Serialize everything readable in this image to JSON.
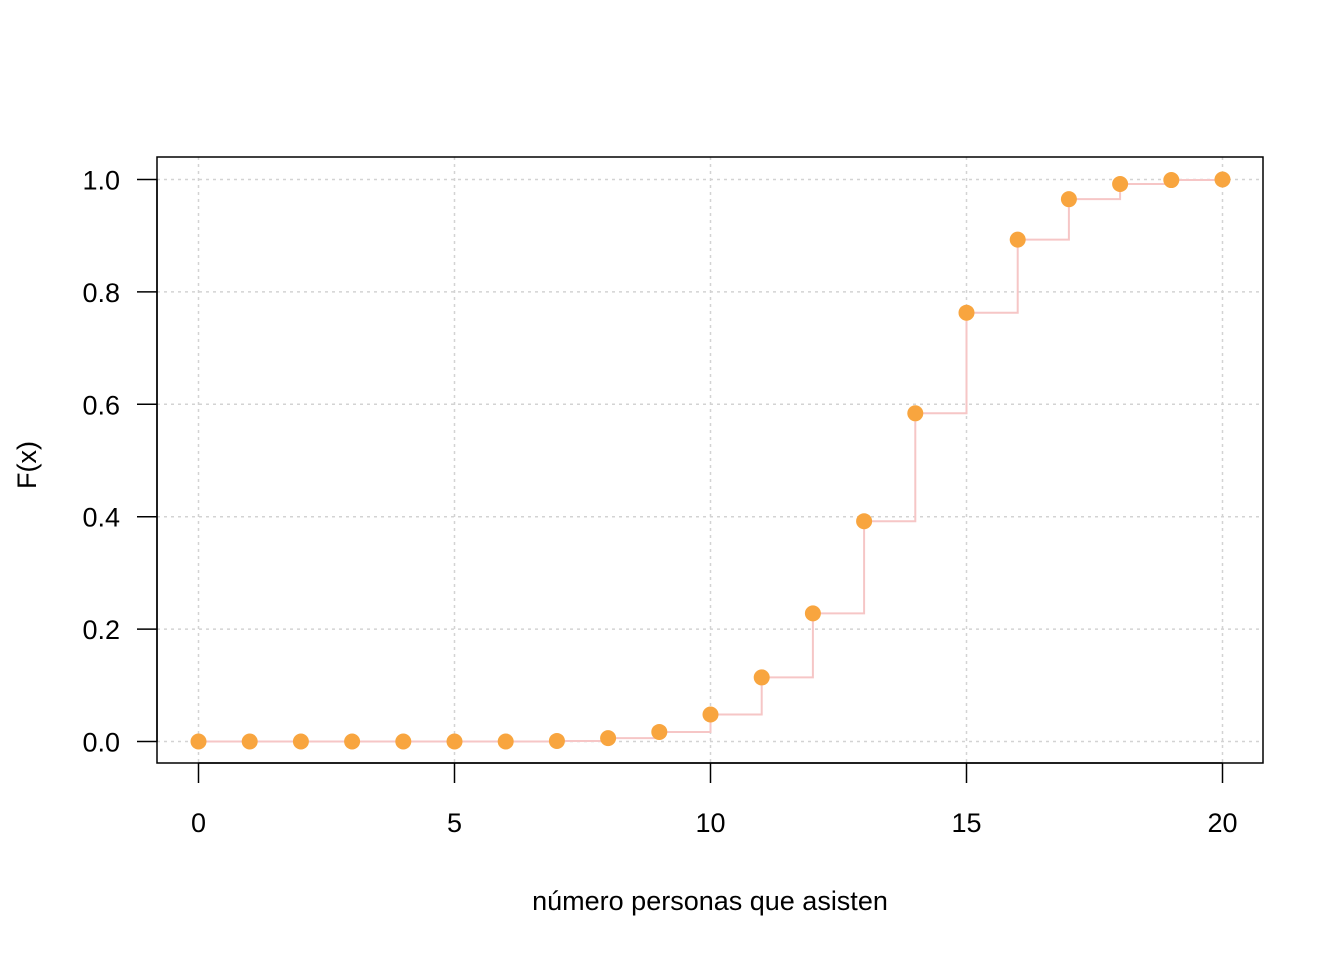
{
  "chart_data": {
    "type": "scatter",
    "title": "",
    "xlabel": "número personas que asisten",
    "ylabel": "F(x)",
    "xlim": [
      0,
      20
    ],
    "ylim": [
      0,
      1
    ],
    "x_ticks": [
      0,
      5,
      10,
      15,
      20
    ],
    "x_tick_labels": [
      "0",
      "5",
      "10",
      "15",
      "20"
    ],
    "y_ticks": [
      0,
      0.2,
      0.4,
      0.6,
      0.8,
      1.0
    ],
    "y_tick_labels": [
      "0.0",
      "0.2",
      "0.4",
      "0.6",
      "0.8",
      "1.0"
    ],
    "grid": true,
    "grid_style": "dotted",
    "step_line": true,
    "series": [
      {
        "x": [
          0,
          1,
          2,
          3,
          4,
          5,
          6,
          7,
          8,
          9,
          10,
          11,
          12,
          13,
          14,
          15,
          16,
          17,
          18,
          19,
          20
        ],
        "y": [
          0.0,
          0.0,
          0.0,
          0.0,
          0.0,
          0.0,
          0.0,
          0.001,
          0.006,
          0.017,
          0.048,
          0.114,
          0.228,
          0.392,
          0.584,
          0.763,
          0.893,
          0.965,
          0.992,
          0.999,
          1.0
        ]
      }
    ],
    "colors": {
      "points": "#F8A53F",
      "step": "#F6C6C6",
      "grid": "#D3D3D3",
      "axis": "#000000"
    }
  }
}
